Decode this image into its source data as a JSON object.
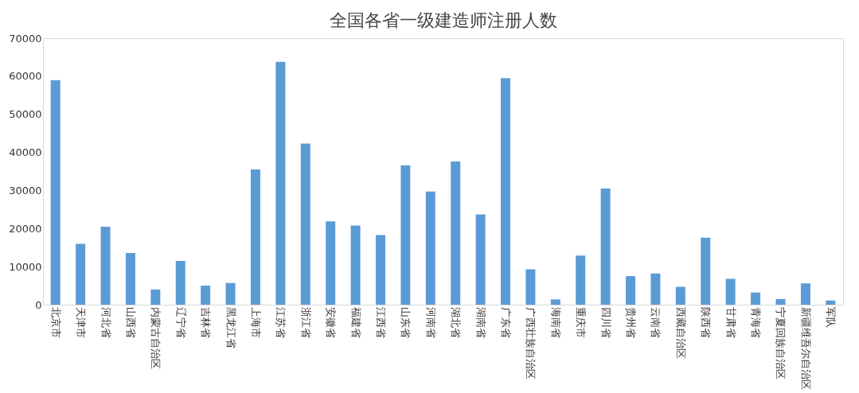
{
  "chart_data": {
    "type": "bar",
    "title": "全国各省一级建造师注册人数",
    "categories": [
      "北京市",
      "天津市",
      "河北省",
      "山西省",
      "内蒙古自治区",
      "辽宁省",
      "吉林省",
      "黑龙江省",
      "上海市",
      "江苏省",
      "浙江省",
      "安徽省",
      "福建省",
      "江西省",
      "山东省",
      "河南省",
      "湖北省",
      "湖南省",
      "广东省",
      "广西壮族自治区",
      "海南省",
      "重庆市",
      "四川省",
      "贵州省",
      "云南省",
      "西藏自治区",
      "陕西省",
      "甘肃省",
      "青海省",
      "宁夏回族自治区",
      "新疆维吾尔自治区",
      "军队"
    ],
    "values": [
      59000,
      16000,
      20500,
      13600,
      4000,
      11500,
      5000,
      5700,
      35500,
      63800,
      42300,
      21900,
      20800,
      18300,
      36600,
      29700,
      37600,
      23700,
      59500,
      9300,
      1400,
      12900,
      30500,
      7500,
      8200,
      4700,
      17600,
      6800,
      3200,
      1500,
      5600,
      1100
    ],
    "color": "#5b9bd5",
    "ylim": [
      0,
      70000
    ],
    "yticks": [
      0,
      10000,
      20000,
      30000,
      40000,
      50000,
      60000,
      70000
    ],
    "grid": false
  }
}
